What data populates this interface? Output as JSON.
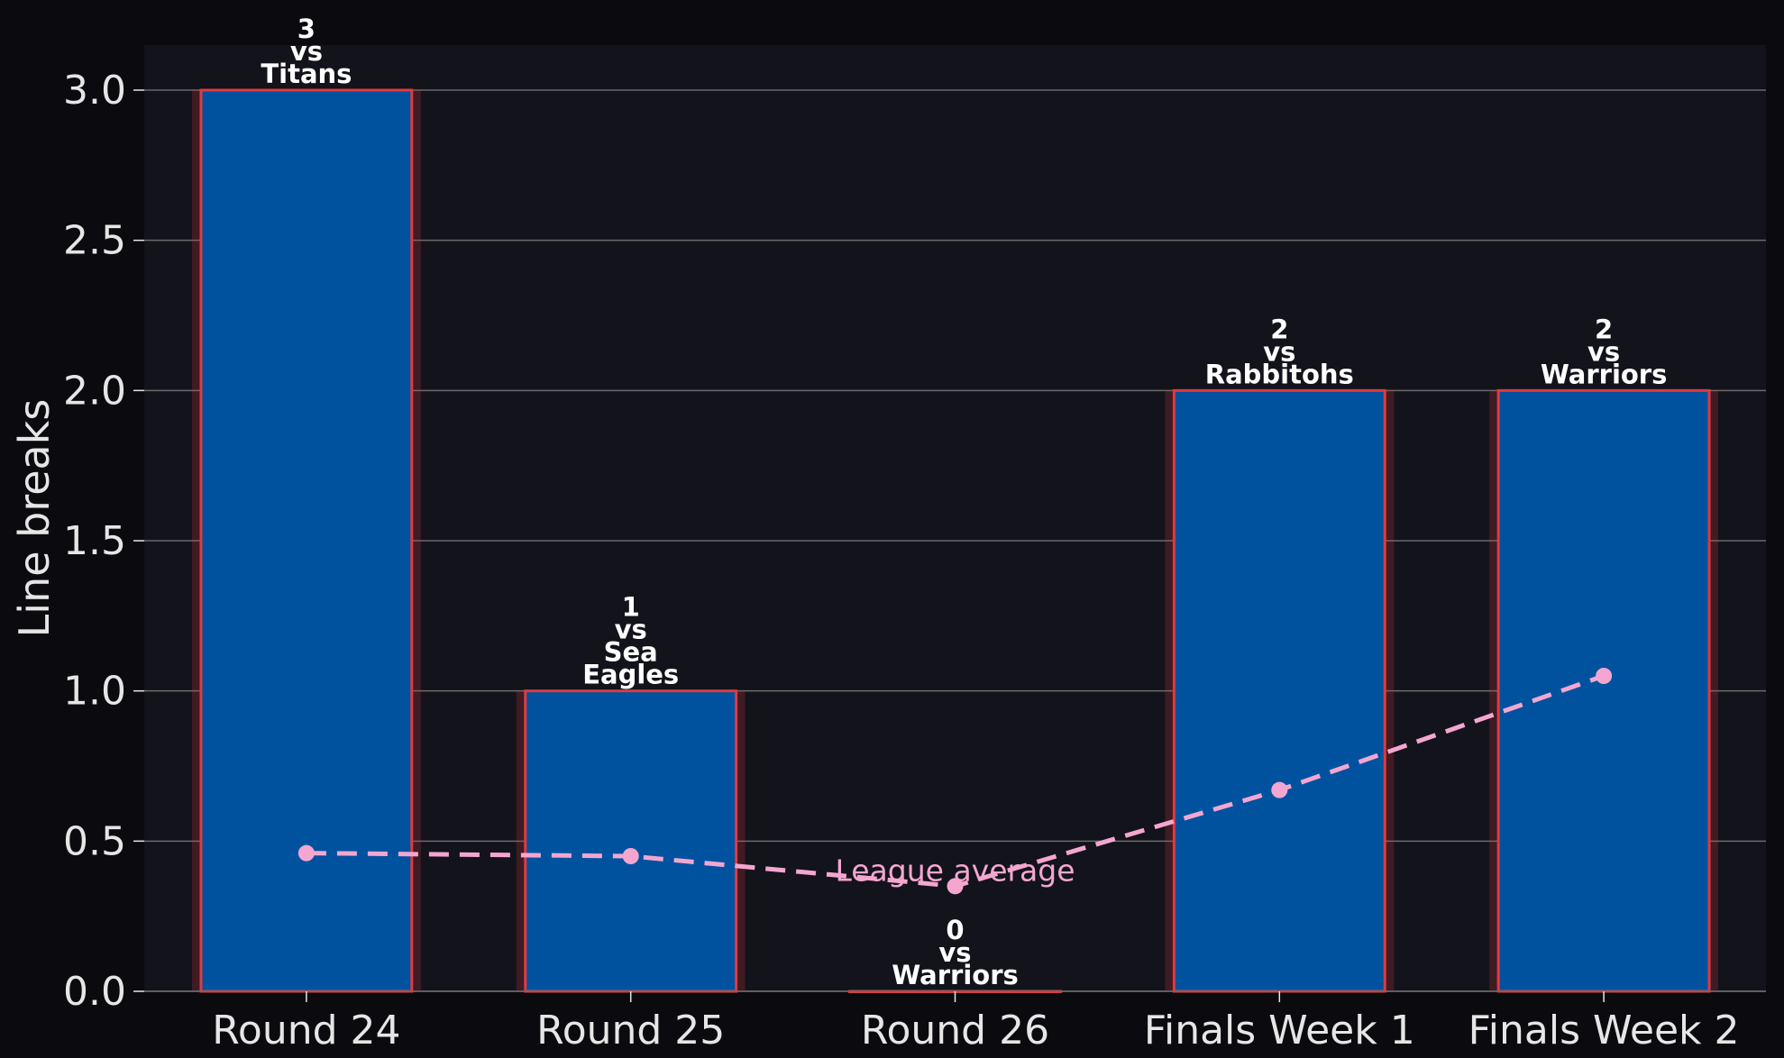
{
  "chart_data": {
    "type": "bar",
    "categories": [
      "Round 24",
      "Round 25",
      "Round 26",
      "Finals Week 1",
      "Finals Week 2"
    ],
    "series": [
      {
        "values": [
          3,
          1,
          0,
          2,
          2
        ],
        "bar_labels": [
          [
            "3",
            "vs",
            "Titans"
          ],
          [
            "1",
            "vs",
            "Sea",
            "Eagles"
          ],
          [
            "0",
            "vs",
            "Warriors"
          ],
          [
            "2",
            "vs",
            "Rabbitohs"
          ],
          [
            "2",
            "vs",
            "Warriors"
          ]
        ]
      },
      {
        "name": "League average",
        "type": "line",
        "values": [
          0.46,
          0.45,
          0.35,
          0.67,
          1.05
        ]
      }
    ],
    "xlabel": "",
    "ylabel": "Line breaks",
    "ylim": [
      0,
      3.15
    ],
    "yticks": [
      "0.0",
      "0.5",
      "1.0",
      "1.5",
      "2.0",
      "2.5",
      "3.0"
    ],
    "grid": "horizontal",
    "colors": {
      "background": "#0b0b0f",
      "plot_background": "#13131b",
      "bar_fill": "#00529f",
      "bar_edge": "#e03a3e",
      "average_line": "#f4a6d0",
      "grid": "#6b6b6b",
      "text": "#e6e6e6"
    }
  }
}
